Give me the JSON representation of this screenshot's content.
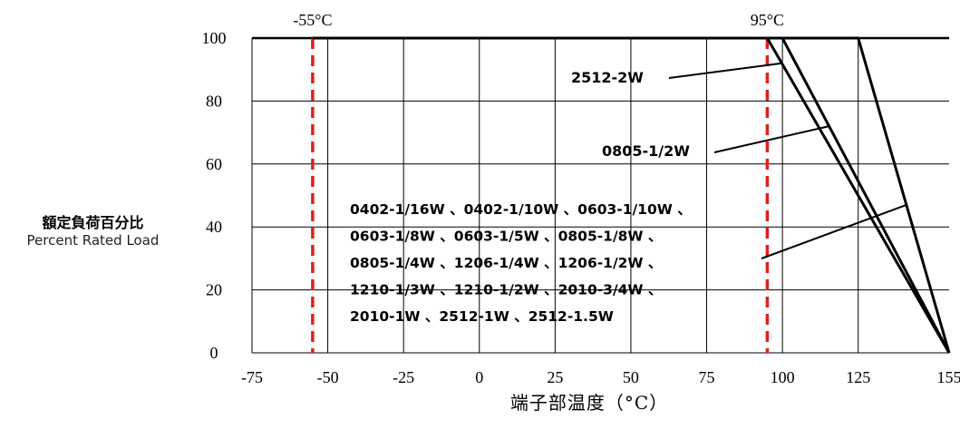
{
  "chart_data": {
    "type": "line",
    "ylabel": "額定負荷百分比",
    "ylabel_en": "Percent Rated Load",
    "xlabel": "端子部温度（°C）",
    "xlim": [
      -75,
      155
    ],
    "ylim": [
      0,
      100
    ],
    "x_ticks": [
      "-75",
      "-50",
      "-25",
      "0",
      "25",
      "50",
      "75",
      "100",
      "125",
      "155"
    ],
    "y_ticks": [
      "100",
      "80",
      "60",
      "40",
      "20",
      "0"
    ],
    "grid": true,
    "series": [
      {
        "name": "2512-2W",
        "x": [
          -55,
          95,
          155
        ],
        "y": [
          100,
          100,
          0
        ]
      },
      {
        "name": "0805-1/2W",
        "x": [
          -55,
          100,
          155
        ],
        "y": [
          100,
          100,
          0
        ]
      },
      {
        "name": "0402-1/16W 、0402-1/10W 、0603-1/10W 、0603-1/8W 、0603-1/5W 、0805-1/8W 、0805-1/4W 、1206-1/4W 、1206-1/2W 、1210-1/3W 、1210-1/2W 、2010-3/4W 、2010-1W 、2512-1W 、2512-1.5W",
        "x": [
          -55,
          125,
          155
        ],
        "y": [
          100,
          100,
          0
        ]
      }
    ],
    "markers": [
      {
        "label": "-55°C",
        "x": -55
      },
      {
        "label": "95°C",
        "x": 95
      }
    ],
    "annotations": {
      "a1": "2512-2W",
      "a2": "0805-1/2W",
      "group_lines": [
        "0402-1/16W 、0402-1/10W 、0603-1/10W 、",
        "0603-1/8W   、0603-1/5W   、0805-1/8W   、",
        "0805-1/4W   、1206-1/4W   、1206-1/2W  、",
        "1210-1/3W   、1210-1/2W   、2010-3/4W 、",
        "2010-1W  、2512-1W  、2512-1.5W"
      ]
    },
    "colors": {
      "curve": "#000000",
      "marker": "#e0201c",
      "grid": "#000000"
    }
  }
}
